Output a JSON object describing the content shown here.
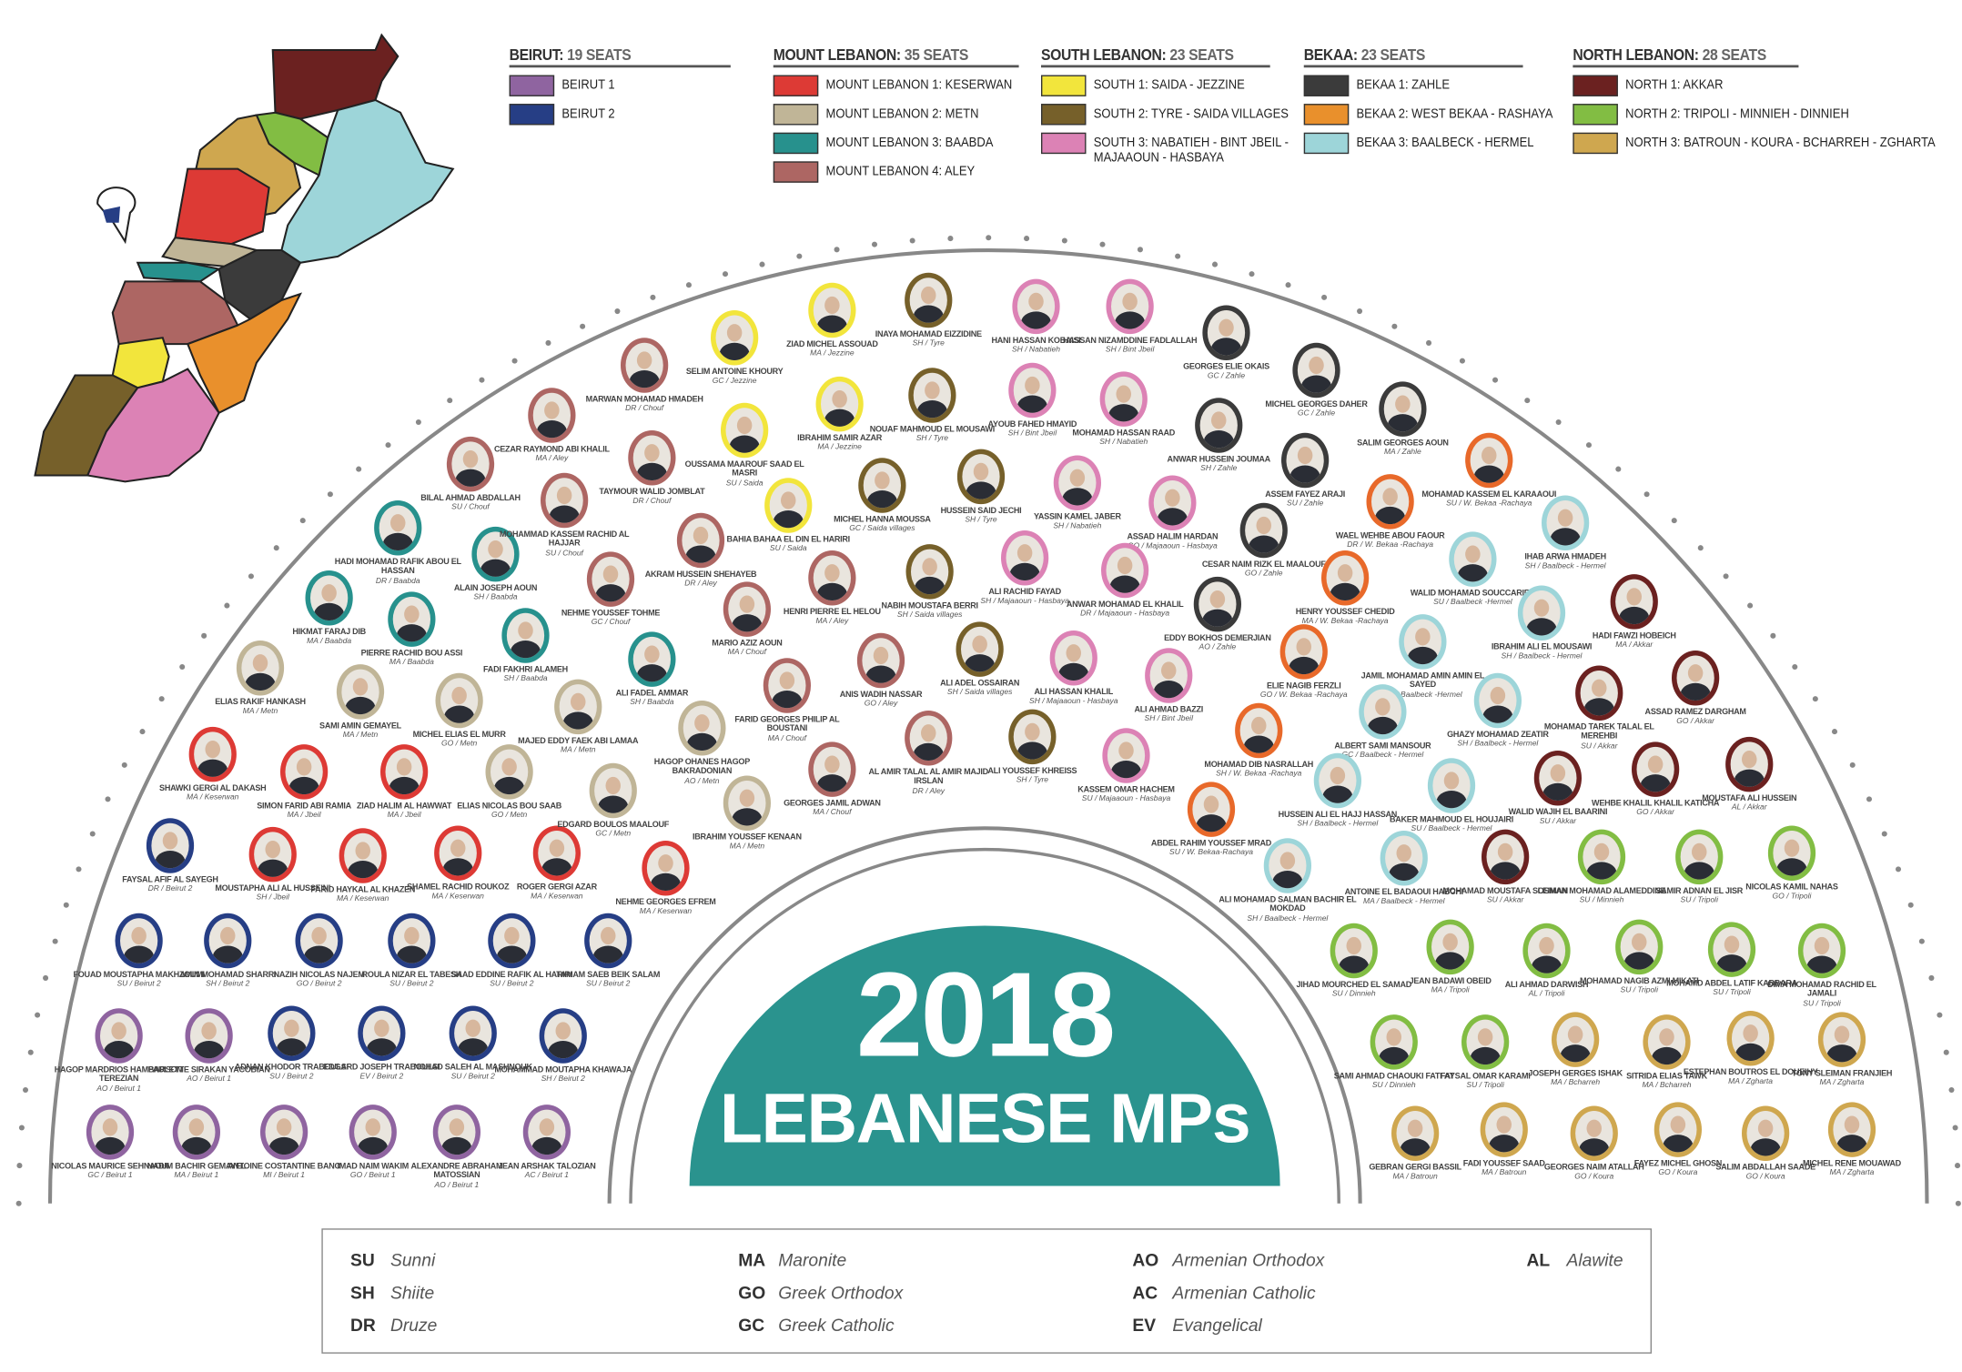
{
  "regions": [
    {
      "name": "BEIRUT:",
      "seats": "19 SEATS",
      "districts": [
        {
          "key": "b1",
          "label": "BEIRUT 1",
          "color": "#8f64a0"
        },
        {
          "key": "b2",
          "label": "BEIRUT 2",
          "color": "#263e85"
        }
      ]
    },
    {
      "name": "MOUNT LEBANON:",
      "seats": "35 SEATS",
      "districts": [
        {
          "key": "ml1",
          "label": "MOUNT LEBANON 1: KESERWAN",
          "color": "#dd3a35"
        },
        {
          "key": "ml2",
          "label": "MOUNT LEBANON 2: METN",
          "color": "#c0b597"
        },
        {
          "key": "ml3",
          "label": "MOUNT LEBANON 3: BAABDA",
          "color": "#27918d"
        },
        {
          "key": "ml4",
          "label": "MOUNT LEBANON 4: ALEY",
          "color": "#ad6663"
        }
      ]
    },
    {
      "name": "SOUTH LEBANON:",
      "seats": "23 SEATS",
      "districts": [
        {
          "key": "s1",
          "label": "SOUTH 1: SAIDA - JEZZINE",
          "color": "#f2e53c"
        },
        {
          "key": "s2",
          "label": "SOUTH 2: TYRE - SAIDA VILLAGES",
          "color": "#76602a"
        },
        {
          "key": "s3",
          "label": "SOUTH 3: NABATIEH - BINT JBEIL - MAJAAOUN - HASBAYA",
          "color": "#dc82b5"
        }
      ]
    },
    {
      "name": "BEKAA:",
      "seats": "23 SEATS",
      "districts": [
        {
          "key": "bk1",
          "label": "BEKAA 1: ZAHLE",
          "color": "#3b3b3b"
        },
        {
          "key": "bk2",
          "label": "BEKAA 2: WEST BEKAA - RASHAYA",
          "color": "#e9902c"
        },
        {
          "key": "bk3",
          "label": "BEKAA 3: BAALBECK - HERMEL",
          "color": "#9dd5d9"
        }
      ]
    },
    {
      "name": "NORTH LEBANON:",
      "seats": "28 SEATS",
      "districts": [
        {
          "key": "n1",
          "label": "NORTH 1: AKKAR",
          "color": "#6b2120"
        },
        {
          "key": "n2",
          "label": "NORTH 2: TRIPOLI - MINNIEH - DINNIEH",
          "color": "#82bd43"
        },
        {
          "key": "n3",
          "label": "NORTH 3: BATROUN - KOURA - BCHARREH - ZGHARTA",
          "color": "#cfa74f"
        }
      ]
    }
  ],
  "ring_override": {
    "bk2": "#e8692a"
  },
  "title": {
    "year": "2018",
    "subtitle": "LEBANESE MPs",
    "color": "#2a938e"
  },
  "mps": [
    {
      "name": "NICOLAS MAURICE SEHNAOUI",
      "info": "GC / Beirut 1",
      "d": "b1"
    },
    {
      "name": "NADIM BACHIR GEMAYEL",
      "info": "MA / Beirut 1",
      "d": "b1"
    },
    {
      "name": "ANTOINE COSTANTINE BANO",
      "info": "MI / Beirut 1",
      "d": "b1"
    },
    {
      "name": "IMAD NAIM WAKIM",
      "info": "GO / Beirut 1",
      "d": "b1"
    },
    {
      "name": "ALEXANDRE ABRAHAM MATOSSIAN",
      "info": "AO / Beirut 1",
      "d": "b1"
    },
    {
      "name": "JEAN ARSHAK TALOZIAN",
      "info": "AC / Beirut 1",
      "d": "b1"
    },
    {
      "name": "HAGOP MARDRIOS HAMBARSOM TEREZIAN",
      "info": "AO / Beirut 1",
      "d": "b1"
    },
    {
      "name": "PAULETTE SIRAKAN YACOBIAN",
      "info": "AO / Beirut 1",
      "d": "b1"
    },
    {
      "name": "ADNAN KHODOR TRABOULSI",
      "info": "SU / Beirut 2",
      "d": "b2"
    },
    {
      "name": "EDGARD JOSEPH TRABOULSI",
      "info": "EV / Beirut 2",
      "d": "b2"
    },
    {
      "name": "NOHAD SALEH AL MASHNOUK",
      "info": "SU / Beirut 2",
      "d": "b2"
    },
    {
      "name": "MOHAMMAD MOUTAPHA KHAWAJA",
      "info": "SH / Beirut 2",
      "d": "b2"
    },
    {
      "name": "FOUAD MOUSTAPHA MAKHZOUMI",
      "info": "SU / Beirut 2",
      "d": "b2"
    },
    {
      "name": "AMIN MOHAMAD SHARRI",
      "info": "SH / Beirut 2",
      "d": "b2"
    },
    {
      "name": "NAZIH NICOLAS NAJEM",
      "info": "GO / Beirut 2",
      "d": "b2"
    },
    {
      "name": "ROULA NIZAR EL TABESH",
      "info": "SU / Beirut 2",
      "d": "b2"
    },
    {
      "name": "SAAD EDDINE RAFIK AL HARIRI",
      "info": "SU / Beirut 2",
      "d": "b2"
    },
    {
      "name": "TAMAM SAEB BEIK SALAM",
      "info": "SU / Beirut 2",
      "d": "b2"
    },
    {
      "name": "FAYSAL AFIF AL SAYEGH",
      "info": "DR / Beirut 2",
      "d": "b2"
    },
    {
      "name": "MOUSTAPHA ALI AL HUSSEINI",
      "info": "SH / Jbeil",
      "d": "ml1"
    },
    {
      "name": "FARID HAYKAL AL KHAZEN",
      "info": "MA / Keserwan",
      "d": "ml1"
    },
    {
      "name": "SHAMEL RACHID ROUKOZ",
      "info": "MA / Keserwan",
      "d": "ml1"
    },
    {
      "name": "ROGER GERGI AZAR",
      "info": "MA / Keserwan",
      "d": "ml1"
    },
    {
      "name": "NEHME GEORGES EFREM",
      "info": "MA / Keserwan",
      "d": "ml1"
    },
    {
      "name": "SHAWKI GERGI AL DAKASH",
      "info": "MA / Keserwan",
      "d": "ml1"
    },
    {
      "name": "SIMON FARID ABI RAMIA",
      "info": "MA / Jbeil",
      "d": "ml1"
    },
    {
      "name": "ZIAD HALIM AL HAWWAT",
      "info": "MA / Jbeil",
      "d": "ml1"
    },
    {
      "name": "ELIAS NICOLAS BOU SAAB",
      "info": "GO / Metn",
      "d": "ml2"
    },
    {
      "name": "EDGARD BOULOS MAALOUF",
      "info": "GC / Metn",
      "d": "ml2"
    },
    {
      "name": "ELIAS RAKIF HANKASH",
      "info": "MA / Metn",
      "d": "ml2"
    },
    {
      "name": "SAMI AMIN GEMAYEL",
      "info": "MA / Metn",
      "d": "ml2"
    },
    {
      "name": "MICHEL ELIAS EL MURR",
      "info": "GO / Metn",
      "d": "ml2"
    },
    {
      "name": "MAJED EDDY FAEK ABI LAMAA",
      "info": "MA / Metn",
      "d": "ml2"
    },
    {
      "name": "HAGOP OHANES HAGOP BAKRADONIAN",
      "info": "AO / Metn",
      "d": "ml2"
    },
    {
      "name": "IBRAHIM YOUSSEF KENAAN",
      "info": "MA / Metn",
      "d": "ml2"
    },
    {
      "name": "HIKMAT FARAJ DIB",
      "info": "MA / Baabda",
      "d": "ml3"
    },
    {
      "name": "PIERRE RACHID BOU ASSI",
      "info": "MA / Baabda",
      "d": "ml3"
    },
    {
      "name": "FADI FAKHRI ALAMEH",
      "info": "SH / Baabda",
      "d": "ml3"
    },
    {
      "name": "ALI FADEL AMMAR",
      "info": "SH / Baabda",
      "d": "ml3"
    },
    {
      "name": "HADI MOHAMAD RAFIK ABOU EL HASSAN",
      "info": "DR / Baabda",
      "d": "ml3"
    },
    {
      "name": "ALAIN JOSEPH AOUN",
      "info": "SH / Baabda",
      "d": "ml3"
    },
    {
      "name": "BILAL AHMAD ABDALLAH",
      "info": "SU / Chouf",
      "d": "ml4"
    },
    {
      "name": "CEZAR RAYMOND ABI KHALIL",
      "info": "MA / Aley",
      "d": "ml4"
    },
    {
      "name": "MARWAN MOHAMAD HMADEH",
      "info": "DR / Chouf",
      "d": "ml4"
    },
    {
      "name": "TAYMOUR WALID JOMBLAT",
      "info": "DR / Chouf",
      "d": "ml4"
    },
    {
      "name": "MOHAMMAD KASSEM RACHID AL HAJJAR",
      "info": "SU / Chouf",
      "d": "ml4"
    },
    {
      "name": "AKRAM HUSSEIN SHEHAYEB",
      "info": "DR / Aley",
      "d": "ml4"
    },
    {
      "name": "NEHME YOUSSEF TOHME",
      "info": "GC / Chouf",
      "d": "ml4"
    },
    {
      "name": "MARIO AZIZ AOUN",
      "info": "MA / Chouf",
      "d": "ml4"
    },
    {
      "name": "HENRI PIERRE EL HELOU",
      "info": "MA / Aley",
      "d": "ml4"
    },
    {
      "name": "ANIS WADIH NASSAR",
      "info": "GO / Aley",
      "d": "ml4"
    },
    {
      "name": "FARID GEORGES PHILIP AL BOUSTANI",
      "info": "MA / Chouf",
      "d": "ml4"
    },
    {
      "name": "GEORGES JAMIL ADWAN",
      "info": "MA / Chouf",
      "d": "ml4"
    },
    {
      "name": "AL AMIR TALAL AL AMIR MAJID IRSLAN",
      "info": "DR / Aley",
      "d": "ml4"
    },
    {
      "name": "SELIM ANTOINE KHOURY",
      "info": "GC / Jezzine",
      "d": "s1"
    },
    {
      "name": "ZIAD MICHEL ASSOUAD",
      "info": "MA / Jezzine",
      "d": "s1"
    },
    {
      "name": "OUSSAMA MAAROUF SAAD EL MASRI",
      "info": "SU / Saida",
      "d": "s1"
    },
    {
      "name": "IBRAHIM SAMIR AZAR",
      "info": "MA / Jezzine",
      "d": "s1"
    },
    {
      "name": "BAHIA BAHAA EL DIN EL HARIRI",
      "info": "SU / Saida",
      "d": "s1"
    },
    {
      "name": "INAYA MOHAMAD EIZZIDINE",
      "info": "SH / Tyre",
      "d": "s2"
    },
    {
      "name": "NOUAF MAHMOUD EL MOUSAWI",
      "info": "SH / Tyre",
      "d": "s2"
    },
    {
      "name": "MICHEL HANNA MOUSSA",
      "info": "GC / Saida villages",
      "d": "s2"
    },
    {
      "name": "HUSSEIN SAID JECHI",
      "info": "SH / Tyre",
      "d": "s2"
    },
    {
      "name": "NABIH MOUSTAFA BERRI",
      "info": "SH / Saida villages",
      "d": "s2"
    },
    {
      "name": "ALI ADEL OSSAIRAN",
      "info": "SH / Saida villages",
      "d": "s2"
    },
    {
      "name": "ALI YOUSSEF KHREISS",
      "info": "SH / Tyre",
      "d": "s2"
    },
    {
      "name": "HANI HASSAN KOBAISI",
      "info": "SH / Nabatieh",
      "d": "s3"
    },
    {
      "name": "HASSAN NIZAMDDINE FADLALLAH",
      "info": "SH / Bint Jbeil",
      "d": "s3"
    },
    {
      "name": "AYOUB FAHED HMAYID",
      "info": "SH / Bint Jbeil",
      "d": "s3"
    },
    {
      "name": "MOHAMAD HASSAN RAAD",
      "info": "SH / Nabatieh",
      "d": "s3"
    },
    {
      "name": "YASSIN KAMEL JABER",
      "info": "SH / Nabatieh",
      "d": "s3"
    },
    {
      "name": "ASSAD HALIM HARDAN",
      "info": "GO / Majaaoun - Hasbaya",
      "d": "s3"
    },
    {
      "name": "ALI RACHID FAYAD",
      "info": "SH / Majaaoun - Hasbaya",
      "d": "s3"
    },
    {
      "name": "ANWAR MOHAMAD EL KHALIL",
      "info": "DR / Majaaoun - Hasbaya",
      "d": "s3"
    },
    {
      "name": "ALI HASSAN KHALIL",
      "info": "SH / Majaaoun - Hasbaya",
      "d": "s3"
    },
    {
      "name": "ALI AHMAD BAZZI",
      "info": "SH / Bint Jbeil",
      "d": "s3"
    },
    {
      "name": "KASSEM OMAR HACHEM",
      "info": "SU / Majaaoun - Hasbaya",
      "d": "s3"
    },
    {
      "name": "GEORGES ELIE OKAIS",
      "info": "GC / Zahle",
      "d": "bk1"
    },
    {
      "name": "ANWAR HUSSEIN JOUMAA",
      "info": "SH / Zahle",
      "d": "bk1"
    },
    {
      "name": "MICHEL GEORGES DAHER",
      "info": "GC / Zahle",
      "d": "bk1"
    },
    {
      "name": "ASSEM FAYEZ ARAJI",
      "info": "SU / Zahle",
      "d": "bk1"
    },
    {
      "name": "SALIM GEORGES AOUN",
      "info": "MA / Zahle",
      "d": "bk1"
    },
    {
      "name": "CESAR NAIM RIZK EL MAALOUF",
      "info": "GO / Zahle",
      "d": "bk1"
    },
    {
      "name": "EDDY BOKHOS DEMERJIAN",
      "info": "AO / Zahle",
      "d": "bk1"
    },
    {
      "name": "MOHAMAD KASSEM EL KARAAOUI",
      "info": "SU / W. Bekaa -Rachaya",
      "d": "bk2"
    },
    {
      "name": "WAEL WEHBE ABOU FAOUR",
      "info": "DR / W. Bekaa -Rachaya",
      "d": "bk2"
    },
    {
      "name": "HENRY YOUSSEF CHEDID",
      "info": "MA / W. Bekaa -Rachaya",
      "d": "bk2"
    },
    {
      "name": "ELIE NAGIB FERZLI",
      "info": "GO / W. Bekaa -Rachaya",
      "d": "bk2"
    },
    {
      "name": "MOHAMAD DIB NASRALLAH",
      "info": "SH / W. Bekaa -Rachaya",
      "d": "bk2"
    },
    {
      "name": "ABDEL RAHIM YOUSSEF MRAD",
      "info": "SU / W. Bekaa-Rachaya",
      "d": "bk2"
    },
    {
      "name": "IHAB ARWA HMADEH",
      "info": "SH / Baalbeck - Hermel",
      "d": "bk3"
    },
    {
      "name": "WALID MOHAMAD SOUCCARIEH",
      "info": "SU / Baalbeck -Hermel",
      "d": "bk3"
    },
    {
      "name": "IBRAHIM ALI EL MOUSAWI",
      "info": "SH / Baalbeck - Hermel",
      "d": "bk3"
    },
    {
      "name": "JAMIL MOHAMAD AMIN AMIN EL SAYED",
      "info": "SH / Baalbeck -Hermel",
      "d": "bk3"
    },
    {
      "name": "GHAZY MOHAMAD ZEATIR",
      "info": "SH / Baalbeck - Hermel",
      "d": "bk3"
    },
    {
      "name": "ALBERT SAMI MANSOUR",
      "info": "GC / Baalbeck - Hermel",
      "d": "bk3"
    },
    {
      "name": "HUSSEIN ALI EL HAJJ HASSAN",
      "info": "SH / Baalbeck - Hermel",
      "d": "bk3"
    },
    {
      "name": "BAKER MAHMOUD EL HOUJAIRI",
      "info": "SU / Baalbeck - Hermel",
      "d": "bk3"
    },
    {
      "name": "ALI MOHAMAD SALMAN BACHIR EL MOKDAD",
      "info": "SH / Baalbeck - Hermel",
      "d": "bk3"
    },
    {
      "name": "ANTOINE EL BADAOUI HABCHI",
      "info": "MA / Baalbeck - Hermel",
      "d": "bk3"
    },
    {
      "name": "HADI FAWZI HOBEICH",
      "info": "MA / Akkar",
      "d": "n1"
    },
    {
      "name": "MOHAMAD TAREK TALAL EL MEREHBI",
      "info": "SU / Akkar",
      "d": "n1"
    },
    {
      "name": "ASSAD RAMEZ DARGHAM",
      "info": "GO / Akkar",
      "d": "n1"
    },
    {
      "name": "WALID WAJIH EL BAARINI",
      "info": "SU / Akkar",
      "d": "n1"
    },
    {
      "name": "WEHBE KHALIL KHALIL KATICHA",
      "info": "GO / Akkar",
      "d": "n1"
    },
    {
      "name": "MOUSTAFA ALI HUSSEIN",
      "info": "AL / Akkar",
      "d": "n1"
    },
    {
      "name": "MOHAMAD MOUSTAFA SLEIMAN",
      "info": "SU / Akkar",
      "d": "n1"
    },
    {
      "name": "OSMAN MOHAMAD ALAMEDDINE",
      "info": "SU / Minnieh",
      "d": "n2"
    },
    {
      "name": "SAMIR ADNAN EL JISR",
      "info": "SU / Tripoli",
      "d": "n2"
    },
    {
      "name": "NICOLAS KAMIL NAHAS",
      "info": "GO / Tripoli",
      "d": "n2"
    },
    {
      "name": "JIHAD MOURCHED EL SAMAD",
      "info": "SU / Dinnieh",
      "d": "n2"
    },
    {
      "name": "JEAN BADAWI OBEID",
      "info": "MA / Tripoli",
      "d": "n2"
    },
    {
      "name": "ALI AHMAD DARWISH",
      "info": "AL / Tripoli",
      "d": "n2"
    },
    {
      "name": "MOHAMAD NAGIB AZMI MIKATI",
      "info": "SU / Tripoli",
      "d": "n2"
    },
    {
      "name": "MOHAMD ABDEL LATIF KABBARA",
      "info": "SU / Tripoli",
      "d": "n2"
    },
    {
      "name": "DIMA MOHAMAD RACHID EL JAMALI",
      "info": "SU / Tripoli",
      "d": "n2"
    },
    {
      "name": "SAMI AHMAD CHAOUKI FATFAT",
      "info": "SU / Dinnieh",
      "d": "n2"
    },
    {
      "name": "FAYSAL OMAR KARAMI",
      "info": "SU / Tripoli",
      "d": "n2"
    },
    {
      "name": "JOSEPH GERGES ISHAK",
      "info": "MA / Bcharreh",
      "d": "n3"
    },
    {
      "name": "SITRIDA ELIAS TAWK",
      "info": "MA / Bcharreh",
      "d": "n3"
    },
    {
      "name": "ESTEPHAN BOUTROS EL DOUEIHY",
      "info": "MA / Zgharta",
      "d": "n3"
    },
    {
      "name": "TONY SLEIMAN FRANJIEH",
      "info": "MA / Zgharta",
      "d": "n3"
    },
    {
      "name": "GEBRAN GERGI BASSIL",
      "info": "MA / Batroun",
      "d": "n3"
    },
    {
      "name": "FADI YOUSSEF SAAD",
      "info": "MA / Batroun",
      "d": "n3"
    },
    {
      "name": "GEORGES NAIM ATALLAH",
      "info": "GO / Koura",
      "d": "n3"
    },
    {
      "name": "FAYEZ MICHEL GHOSN",
      "info": "GO / Koura",
      "d": "n3"
    },
    {
      "name": "SALIM ABDALLAH SAADE",
      "info": "GO / Koura",
      "d": "n3"
    },
    {
      "name": "MICHEL RENE MOUAWAD",
      "info": "MA / Zgharta",
      "d": "n3"
    }
  ],
  "key": [
    {
      "code": "SU",
      "label": "Sunni"
    },
    {
      "code": "SH",
      "label": "Shiite"
    },
    {
      "code": "DR",
      "label": "Druze"
    },
    {
      "code": "MA",
      "label": "Maronite"
    },
    {
      "code": "GO",
      "label": "Greek Orthodox"
    },
    {
      "code": "GC",
      "label": "Greek Catholic"
    },
    {
      "code": "AO",
      "label": "Armenian Orthodox"
    },
    {
      "code": "AC",
      "label": "Armenian Catholic"
    },
    {
      "code": "EV",
      "label": "Evangelical"
    },
    {
      "code": "AL",
      "label": "Alawite"
    }
  ]
}
